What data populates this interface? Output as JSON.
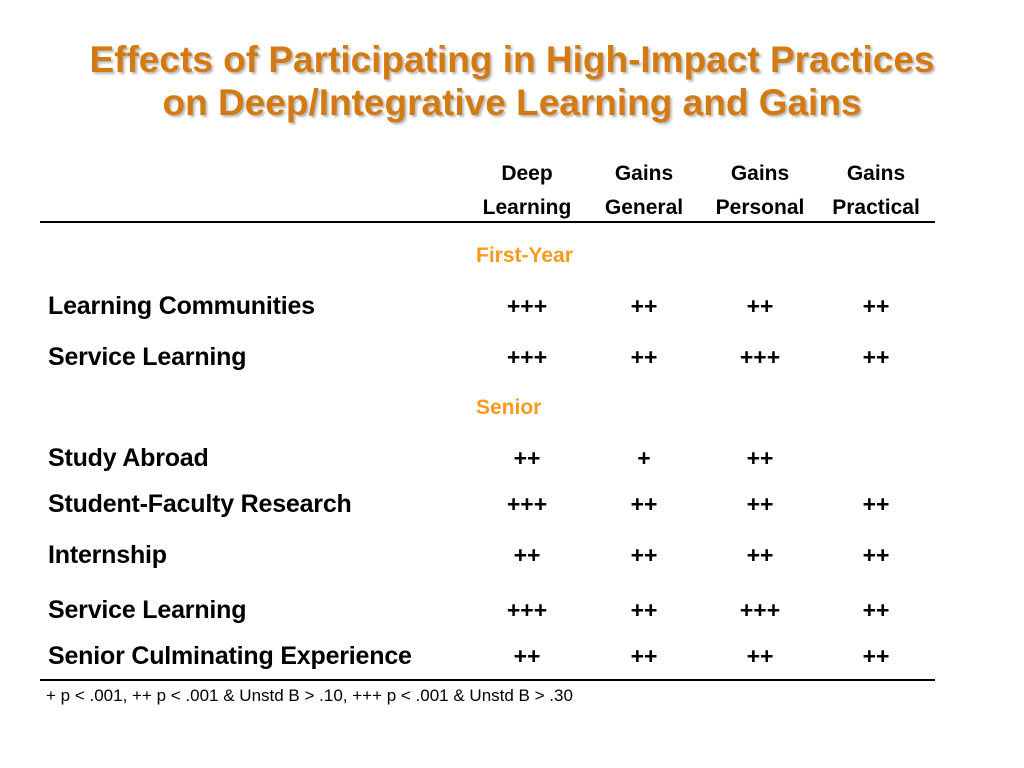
{
  "title": {
    "line1": "Effects of Participating in High-Impact Practices",
    "line2": "on Deep/Integrative Learning and Gains"
  },
  "columns": [
    {
      "line1": "Deep",
      "line2": "Learning"
    },
    {
      "line1": "Gains",
      "line2": "General"
    },
    {
      "line1": "Gains",
      "line2": "Personal"
    },
    {
      "line1": "Gains",
      "line2": "Practical"
    }
  ],
  "sections": {
    "first_year": "First-Year",
    "senior": "Senior"
  },
  "rows": [
    {
      "label": "Learning Communities",
      "values": [
        "+++",
        "++",
        "++",
        "++"
      ]
    },
    {
      "label": "Service Learning",
      "values": [
        "+++",
        "++",
        "+++",
        "++"
      ]
    },
    {
      "label": "Study Abroad",
      "values": [
        "++",
        "+",
        "++",
        ""
      ]
    },
    {
      "label": "Student-Faculty Research",
      "values": [
        "+++",
        "++",
        "++",
        "++"
      ]
    },
    {
      "label": "Internship",
      "values": [
        "++",
        "++",
        "++",
        "++"
      ]
    },
    {
      "label": "Service Learning",
      "values": [
        "+++",
        "++",
        "+++",
        "++"
      ]
    },
    {
      "label": "Senior Culminating Experience",
      "values": [
        "++",
        "++",
        "++",
        "++"
      ]
    }
  ],
  "footnote": "+ p < .001, ++ p < .001 & Unstd B > .10, +++ p < .001 & Unstd B > .30",
  "colors": {
    "title": "#d47a12",
    "section": "#f79a1e",
    "text": "#000000"
  }
}
